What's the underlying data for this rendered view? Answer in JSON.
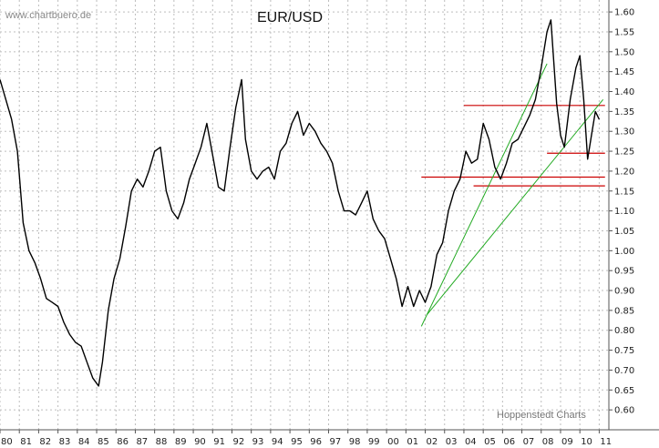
{
  "chart_data": {
    "type": "line",
    "title": "EUR/USD",
    "watermark": "www.chartbuero.de",
    "credit": "Hoppenstedt Charts",
    "xlabel": "",
    "ylabel": "",
    "ylim": [
      0.55,
      1.63
    ],
    "xlim": [
      1980,
      2011.5
    ],
    "grid": true,
    "y_ticks": [
      0.6,
      0.65,
      0.7,
      0.75,
      0.8,
      0.85,
      0.9,
      0.95,
      1.0,
      1.05,
      1.1,
      1.15,
      1.2,
      1.25,
      1.3,
      1.35,
      1.4,
      1.45,
      1.5,
      1.55,
      1.6
    ],
    "y_tick_labels": [
      "0.60",
      "0.65",
      "0.70",
      "0.75",
      "0.80",
      "0.85",
      "0.90",
      "0.95",
      "1.00",
      "1.05",
      "1.10",
      "1.15",
      "1.20",
      "1.25",
      "1.30",
      "1.35",
      "1.40",
      "1.45",
      "1.50",
      "1.55",
      "1.60"
    ],
    "x_ticks": [
      1980,
      1981,
      1982,
      1983,
      1984,
      1985,
      1986,
      1987,
      1988,
      1989,
      1990,
      1991,
      1992,
      1993,
      1994,
      1995,
      1996,
      1997,
      1998,
      1999,
      2000,
      2001,
      2002,
      2003,
      2004,
      2005,
      2006,
      2007,
      2008,
      2009,
      2010,
      2011
    ],
    "x_tick_labels": [
      "80",
      "81",
      "82",
      "83",
      "84",
      "85",
      "86",
      "87",
      "88",
      "89",
      "90",
      "91",
      "92",
      "93",
      "94",
      "95",
      "96",
      "97",
      "98",
      "99",
      "00",
      "01",
      "02",
      "03",
      "04",
      "05",
      "06",
      "07",
      "08",
      "09",
      "10",
      "11"
    ],
    "series": [
      {
        "color": "#000000",
        "x": [
          1980.0,
          1980.3,
          1980.6,
          1980.9,
          1981.2,
          1981.5,
          1981.8,
          1982.1,
          1982.4,
          1982.7,
          1983.0,
          1983.3,
          1983.6,
          1983.9,
          1984.2,
          1984.5,
          1984.8,
          1985.1,
          1985.3,
          1985.6,
          1985.9,
          1986.2,
          1986.5,
          1986.8,
          1987.1,
          1987.4,
          1987.7,
          1988.0,
          1988.3,
          1988.6,
          1988.9,
          1989.2,
          1989.5,
          1989.8,
          1990.1,
          1990.4,
          1990.7,
          1991.0,
          1991.3,
          1991.6,
          1991.9,
          1992.2,
          1992.5,
          1992.7,
          1993.0,
          1993.3,
          1993.6,
          1993.9,
          1994.2,
          1994.5,
          1994.8,
          1995.1,
          1995.4,
          1995.7,
          1996.0,
          1996.3,
          1996.6,
          1996.9,
          1997.2,
          1997.5,
          1997.8,
          1998.1,
          1998.4,
          1998.7,
          1999.0,
          1999.3,
          1999.6,
          1999.9,
          2000.2,
          2000.5,
          2000.8,
          2001.1,
          2001.4,
          2001.7,
          2002.0,
          2002.3,
          2002.6,
          2002.9,
          2003.2,
          2003.5,
          2003.8,
          2004.1,
          2004.4,
          2004.7,
          2005.0,
          2005.3,
          2005.6,
          2005.9,
          2006.2,
          2006.5,
          2006.8,
          2007.1,
          2007.4,
          2007.7,
          2008.0,
          2008.3,
          2008.5,
          2008.8,
          2009.0,
          2009.2,
          2009.5,
          2009.8,
          2010.0,
          2010.2,
          2010.4,
          2010.6,
          2010.8,
          2011.0
        ],
        "y": [
          1.43,
          1.38,
          1.33,
          1.25,
          1.07,
          1.0,
          0.97,
          0.93,
          0.88,
          0.87,
          0.86,
          0.82,
          0.79,
          0.77,
          0.76,
          0.72,
          0.68,
          0.66,
          0.72,
          0.85,
          0.93,
          0.98,
          1.06,
          1.15,
          1.18,
          1.16,
          1.2,
          1.25,
          1.26,
          1.15,
          1.1,
          1.08,
          1.12,
          1.18,
          1.22,
          1.26,
          1.32,
          1.24,
          1.16,
          1.15,
          1.26,
          1.36,
          1.43,
          1.28,
          1.2,
          1.18,
          1.2,
          1.21,
          1.18,
          1.25,
          1.27,
          1.32,
          1.35,
          1.29,
          1.32,
          1.3,
          1.27,
          1.25,
          1.22,
          1.15,
          1.1,
          1.1,
          1.09,
          1.12,
          1.15,
          1.08,
          1.05,
          1.03,
          0.98,
          0.93,
          0.86,
          0.91,
          0.86,
          0.9,
          0.87,
          0.91,
          0.99,
          1.02,
          1.1,
          1.15,
          1.18,
          1.25,
          1.22,
          1.23,
          1.32,
          1.28,
          1.21,
          1.18,
          1.22,
          1.27,
          1.28,
          1.31,
          1.34,
          1.38,
          1.46,
          1.55,
          1.58,
          1.37,
          1.29,
          1.26,
          1.38,
          1.46,
          1.49,
          1.38,
          1.23,
          1.29,
          1.35,
          1.33
        ]
      }
    ],
    "annotations": {
      "horizontal_lines": [
        {
          "color": "#cc0000",
          "y": 1.365,
          "x_start": 2004.0,
          "x_end": 2011.3
        },
        {
          "color": "#cc0000",
          "y": 1.245,
          "x_start": 2008.3,
          "x_end": 2011.3
        },
        {
          "color": "#cc0000",
          "y": 1.185,
          "x_start": 2001.8,
          "x_end": 2011.3
        },
        {
          "color": "#cc0000",
          "y": 1.163,
          "x_start": 2004.5,
          "x_end": 2011.3
        }
      ],
      "trend_lines": [
        {
          "color": "#22aa22",
          "x1": 2001.8,
          "y1": 0.81,
          "x2": 2008.3,
          "y2": 1.47
        },
        {
          "color": "#22aa22",
          "x1": 2002.1,
          "y1": 0.84,
          "x2": 2011.2,
          "y2": 1.38
        }
      ]
    }
  }
}
